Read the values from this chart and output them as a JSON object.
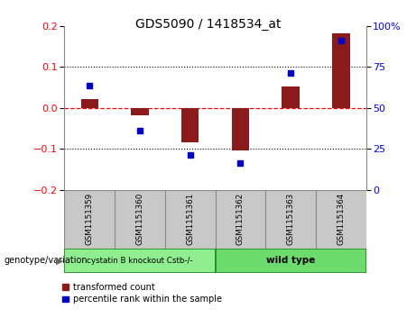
{
  "title": "GDS5090 / 1418534_at",
  "samples": [
    "GSM1151359",
    "GSM1151360",
    "GSM1151361",
    "GSM1151362",
    "GSM1151363",
    "GSM1151364"
  ],
  "red_bars": [
    0.022,
    -0.018,
    -0.085,
    -0.105,
    0.052,
    0.182
  ],
  "blue_dots_left": [
    0.055,
    -0.055,
    -0.115,
    -0.135,
    0.085,
    0.165
  ],
  "ylim_left": [
    -0.2,
    0.2
  ],
  "yticks_left": [
    -0.2,
    -0.1,
    0.0,
    0.1,
    0.2
  ],
  "ylim_right": [
    0,
    100
  ],
  "yticks_right": [
    0,
    25,
    50,
    75,
    100
  ],
  "ytick_labels_right": [
    "0",
    "25",
    "50",
    "75",
    "100%"
  ],
  "group1_label": "cystatin B knockout Cstb-/-",
  "group2_label": "wild type",
  "group1_indices": [
    0,
    1,
    2
  ],
  "group2_indices": [
    3,
    4,
    5
  ],
  "group1_color": "#90EE90",
  "group2_color": "#6BDB6B",
  "group1_edge": "#228B22",
  "group2_edge": "#228B22",
  "bar_color": "#8B1A1A",
  "dot_color": "#0000CD",
  "legend_label_red": "transformed count",
  "legend_label_blue": "percentile rank within the sample",
  "genotype_label": "genotype/variation",
  "bg_color": "#ffffff",
  "plot_bg": "#ffffff",
  "sample_box_color": "#C8C8C8",
  "sample_box_edge": "#888888",
  "tick_label_fontsize": 8,
  "title_fontsize": 10
}
